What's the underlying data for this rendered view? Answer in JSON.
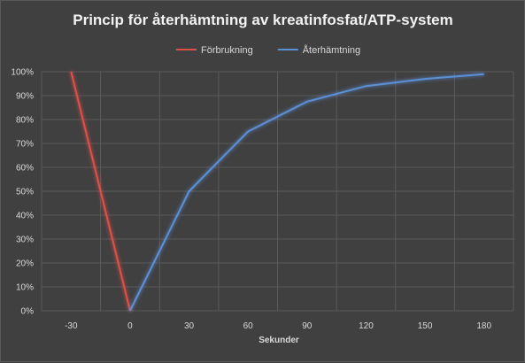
{
  "chart_data": {
    "type": "line",
    "title": "Princip för återhämtning av kreatinfosfat/ATP-system",
    "xlabel": "Sekunder",
    "ylabel": "",
    "categories": [
      "-30",
      "0",
      "30",
      "60",
      "90",
      "120",
      "150",
      "180"
    ],
    "y_ticks": [
      "0%",
      "10%",
      "20%",
      "30%",
      "40%",
      "50%",
      "60%",
      "70%",
      "80%",
      "90%",
      "100%"
    ],
    "ylim": [
      0,
      100
    ],
    "y_unit": "percent",
    "grid": true,
    "legend_position": "top",
    "series": [
      {
        "name": "Förbrukning",
        "color": "#e0504a",
        "values": [
          100,
          0,
          null,
          null,
          null,
          null,
          null,
          null
        ]
      },
      {
        "name": "Återhämtning",
        "color": "#5b8fd6",
        "values": [
          null,
          0,
          50,
          75,
          87.5,
          94,
          97,
          99
        ]
      }
    ]
  },
  "colors": {
    "background": "#404040",
    "grid": "#5a5a5a",
    "text": "#d9d9d9"
  }
}
